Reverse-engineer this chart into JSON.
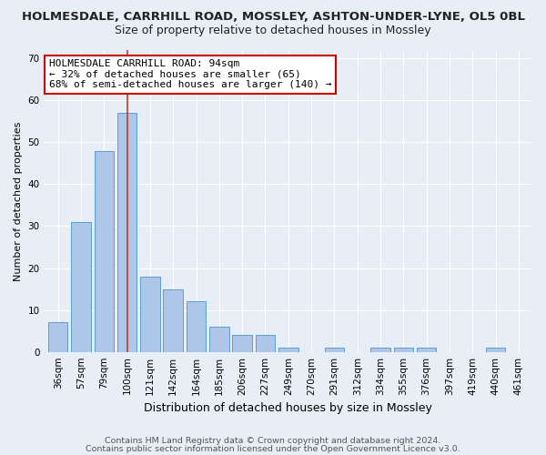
{
  "title1": "HOLMESDALE, CARRHILL ROAD, MOSSLEY, ASHTON-UNDER-LYNE, OL5 0BL",
  "title2": "Size of property relative to detached houses in Mossley",
  "xlabel": "Distribution of detached houses by size in Mossley",
  "ylabel": "Number of detached properties",
  "categories": [
    "36sqm",
    "57sqm",
    "79sqm",
    "100sqm",
    "121sqm",
    "142sqm",
    "164sqm",
    "185sqm",
    "206sqm",
    "227sqm",
    "249sqm",
    "270sqm",
    "291sqm",
    "312sqm",
    "334sqm",
    "355sqm",
    "376sqm",
    "397sqm",
    "419sqm",
    "440sqm",
    "461sqm"
  ],
  "values": [
    7,
    31,
    48,
    57,
    18,
    15,
    12,
    6,
    4,
    4,
    1,
    0,
    1,
    0,
    1,
    1,
    1,
    0,
    0,
    1,
    0
  ],
  "bar_color": "#aec6e8",
  "bar_edge_color": "#5a9fd4",
  "vline_x": 3,
  "vline_color": "#c0392b",
  "annotation_line1": "HOLMESDALE CARRHILL ROAD: 94sqm",
  "annotation_line2": "← 32% of detached houses are smaller (65)",
  "annotation_line3": "68% of semi-detached houses are larger (140) →",
  "annotation_box_color": "#ffffff",
  "annotation_box_edge": "#cc0000",
  "ylim": [
    0,
    72
  ],
  "yticks": [
    0,
    10,
    20,
    30,
    40,
    50,
    60,
    70
  ],
  "background_color": "#e8eef5",
  "plot_bg_color": "#e8eef5",
  "footer1": "Contains HM Land Registry data © Crown copyright and database right 2024.",
  "footer2": "Contains public sector information licensed under the Open Government Licence v3.0.",
  "title1_fontsize": 9.5,
  "title2_fontsize": 9,
  "xlabel_fontsize": 9,
  "ylabel_fontsize": 8,
  "tick_fontsize": 7.5,
  "annotation_fontsize": 8,
  "footer_fontsize": 6.8
}
